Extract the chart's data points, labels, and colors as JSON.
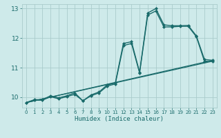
{
  "xlabel": "Humidex (Indice chaleur)",
  "xlim": [
    -0.5,
    23.5
  ],
  "ylim": [
    9.65,
    13.15
  ],
  "yticks": [
    10,
    11,
    12,
    13
  ],
  "xticks": [
    0,
    1,
    2,
    3,
    4,
    5,
    6,
    7,
    8,
    9,
    10,
    11,
    12,
    13,
    14,
    15,
    16,
    17,
    18,
    19,
    20,
    21,
    22,
    23
  ],
  "bg_color": "#ceeaea",
  "grid_color": "#aacccc",
  "line_color": "#1a6b6b",
  "series": [
    {
      "x": [
        0,
        1,
        2,
        3,
        4,
        5,
        6,
        7,
        8,
        9,
        10,
        11,
        12,
        13,
        14,
        15,
        16,
        17,
        18,
        19,
        20,
        21,
        22,
        23
      ],
      "y": [
        9.82,
        9.92,
        9.92,
        10.05,
        9.98,
        10.05,
        10.15,
        9.88,
        10.08,
        10.18,
        10.42,
        10.48,
        11.82,
        11.88,
        10.85,
        12.85,
        13.0,
        12.45,
        12.42,
        12.42,
        12.43,
        12.08,
        11.28,
        11.25
      ],
      "marker": "D",
      "lw": 1.0,
      "ms": 2.0
    },
    {
      "x": [
        0,
        1,
        2,
        3,
        4,
        5,
        6,
        7,
        8,
        9,
        10,
        11,
        12,
        13,
        14,
        15,
        16,
        17,
        18,
        19,
        20,
        21,
        22,
        23
      ],
      "y": [
        9.82,
        9.9,
        9.9,
        10.02,
        9.95,
        10.02,
        10.1,
        9.88,
        10.05,
        10.15,
        10.38,
        10.45,
        11.75,
        11.82,
        10.82,
        12.78,
        12.92,
        12.38,
        12.38,
        12.4,
        12.4,
        12.05,
        11.22,
        11.22
      ],
      "marker": "D",
      "lw": 1.0,
      "ms": 2.0
    },
    {
      "x": [
        0,
        23
      ],
      "y": [
        9.82,
        11.25
      ],
      "marker": null,
      "lw": 0.9,
      "ms": 0
    },
    {
      "x": [
        0,
        23
      ],
      "y": [
        9.82,
        11.22
      ],
      "marker": null,
      "lw": 0.9,
      "ms": 0
    }
  ]
}
